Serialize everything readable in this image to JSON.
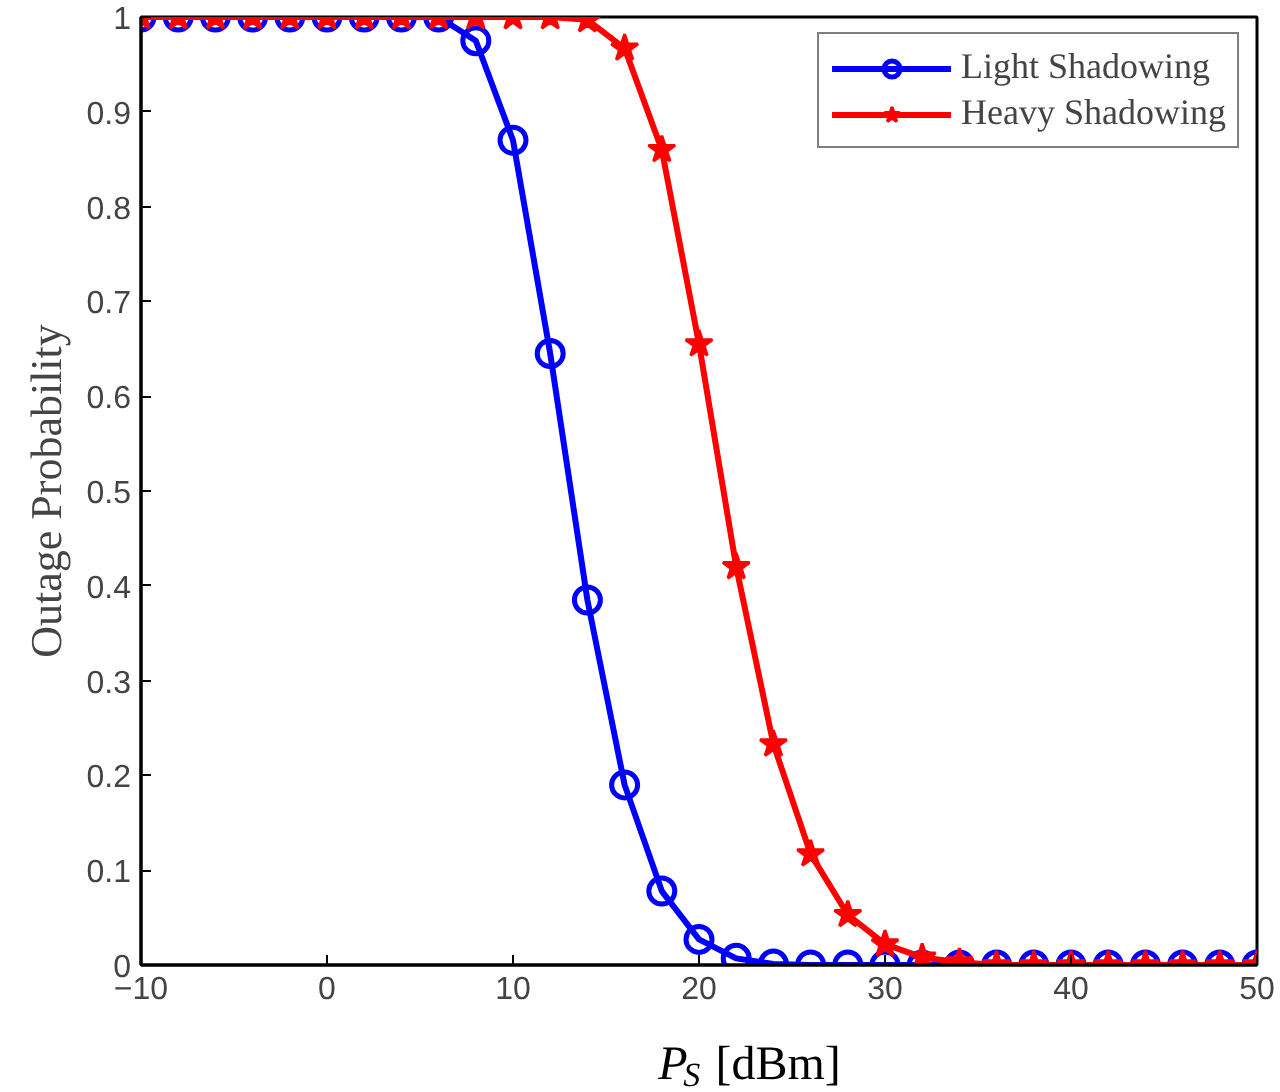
{
  "chart_data": {
    "type": "line",
    "x": [
      -10,
      -8,
      -6,
      -4,
      -2,
      0,
      2,
      4,
      6,
      8,
      10,
      12,
      14,
      16,
      18,
      20,
      22,
      24,
      26,
      28,
      30,
      32,
      34,
      36,
      38,
      40,
      42,
      44,
      46,
      48,
      50
    ],
    "series": [
      {
        "name": "Light Shadowing",
        "color": "#0000ff",
        "marker": "circle",
        "values": [
          1,
          1,
          1,
          1,
          1,
          1,
          1,
          1,
          1,
          0.975,
          0.87,
          0.645,
          0.385,
          0.19,
          0.078,
          0.027,
          0.007,
          0.001,
          0,
          0,
          0,
          0,
          0,
          0,
          0,
          0,
          0,
          0,
          0,
          0,
          0
        ]
      },
      {
        "name": "Heavy Shadowing",
        "color": "#ff0000",
        "marker": "star",
        "values": [
          1,
          1,
          1,
          1,
          1,
          1,
          1,
          1,
          1,
          1,
          1,
          1,
          0.997,
          0.967,
          0.86,
          0.655,
          0.42,
          0.233,
          0.117,
          0.053,
          0.022,
          0.008,
          0.003,
          0,
          0,
          0,
          0,
          0,
          0,
          0,
          0
        ]
      }
    ],
    "xlabel": "P$_{S}$ [dBm]",
    "ylabel": "Outage Probability",
    "xlim": [
      -10,
      50
    ],
    "xticks": [
      {
        "value": -10,
        "label": "−10"
      },
      0,
      10,
      20,
      30,
      40,
      50
    ],
    "ylim": [
      0,
      1
    ],
    "yticks": [
      0,
      0.1,
      0.2,
      0.3,
      0.4,
      0.5,
      0.6,
      0.7,
      0.8,
      0.9,
      1
    ],
    "grid": false,
    "legend": "top right",
    "line_style": "solid"
  }
}
